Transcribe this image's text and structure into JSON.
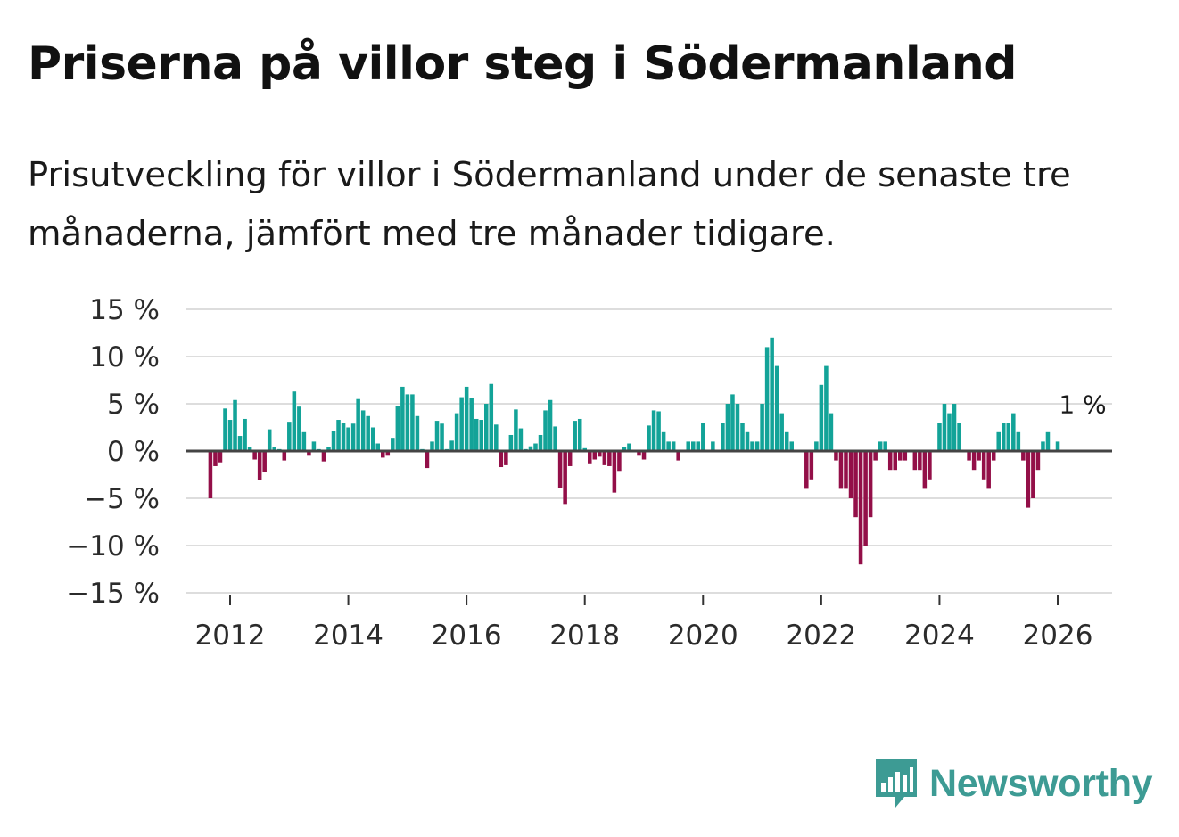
{
  "title": "Priserna på villor steg i Södermanland",
  "subtitle": "Prisutveckling för villor i Södermanland under de senaste tre månaderna, jämfört med tre månader tidigare.",
  "brand": {
    "name": "Newsworthy",
    "icon": "newsworthy-logo-icon",
    "color": "#3d9b94"
  },
  "colors": {
    "positive": "#13a398",
    "negative": "#930f48",
    "grid": "#dddddd",
    "zero_line": "#444444"
  },
  "chart_data": {
    "type": "bar",
    "title": "Priserna på villor steg i Södermanland",
    "xlabel": "",
    "ylabel": "",
    "ylim": [
      -15,
      15
    ],
    "y_ticks": [
      15,
      10,
      5,
      0,
      -5,
      -10,
      -15
    ],
    "y_tick_labels": [
      "15 %",
      "10 %",
      "5 %",
      "0 %",
      "−5 %",
      "−10 %",
      "−15 %"
    ],
    "x_ticks": [
      2012,
      2014,
      2016,
      2018,
      2020,
      2022,
      2024,
      2026
    ],
    "x_tick_labels": [
      "2012",
      "2014",
      "2016",
      "2018",
      "2020",
      "2022",
      "2024",
      "2026"
    ],
    "x_start": 2011.667,
    "x_end": 2026.833,
    "bar_step": 0.0833333,
    "grid": true,
    "end_label": "1 %",
    "values": [
      -5,
      -1.6,
      -1.2,
      4.5,
      3.3,
      5.4,
      1.6,
      3.4,
      0.4,
      -0.9,
      -3.1,
      -2.2,
      2.3,
      0.4,
      0.2,
      -1,
      3.1,
      6.3,
      4.7,
      2,
      -0.5,
      1,
      0.2,
      -1.1,
      0.4,
      2.1,
      3.3,
      3,
      2.5,
      2.9,
      5.5,
      4.3,
      3.7,
      2.5,
      0.8,
      -0.7,
      -0.5,
      1.4,
      4.8,
      6.8,
      6,
      6,
      3.7,
      0.2,
      -1.8,
      1,
      3.2,
      2.9,
      0.2,
      1.1,
      4,
      5.7,
      6.8,
      5.6,
      3.4,
      3.3,
      5,
      7.1,
      2.8,
      -1.7,
      -1.5,
      1.7,
      4.4,
      2.4,
      0.2,
      0.5,
      0.8,
      1.7,
      4.3,
      5.4,
      2.6,
      -3.9,
      -5.6,
      -1.6,
      3.2,
      3.4,
      0.3,
      -1.3,
      -0.9,
      -0.6,
      -1.5,
      -1.6,
      -4.4,
      -2.1,
      0.4,
      0.8,
      0,
      -0.5,
      -0.9,
      2.7,
      4.3,
      4.2,
      2,
      1,
      1,
      -1,
      0,
      1,
      1,
      1,
      3,
      0,
      1,
      0,
      3,
      5,
      6,
      5,
      3,
      2,
      1,
      1,
      5,
      11,
      12,
      9,
      4,
      2,
      1,
      0,
      0,
      -4,
      -3,
      1,
      7,
      9,
      4,
      -1,
      -4,
      -4,
      -5,
      -7,
      -12,
      -10,
      -7,
      -1,
      1,
      1,
      -2,
      -2,
      -1,
      -1,
      0,
      -2,
      -2,
      -4,
      -3,
      0,
      3,
      5,
      4,
      5,
      3,
      0,
      -1,
      -2,
      -1,
      -3,
      -4,
      -1,
      2,
      3,
      3,
      4,
      2,
      -1,
      -6,
      -5,
      -2,
      1,
      2,
      0,
      1
    ]
  }
}
